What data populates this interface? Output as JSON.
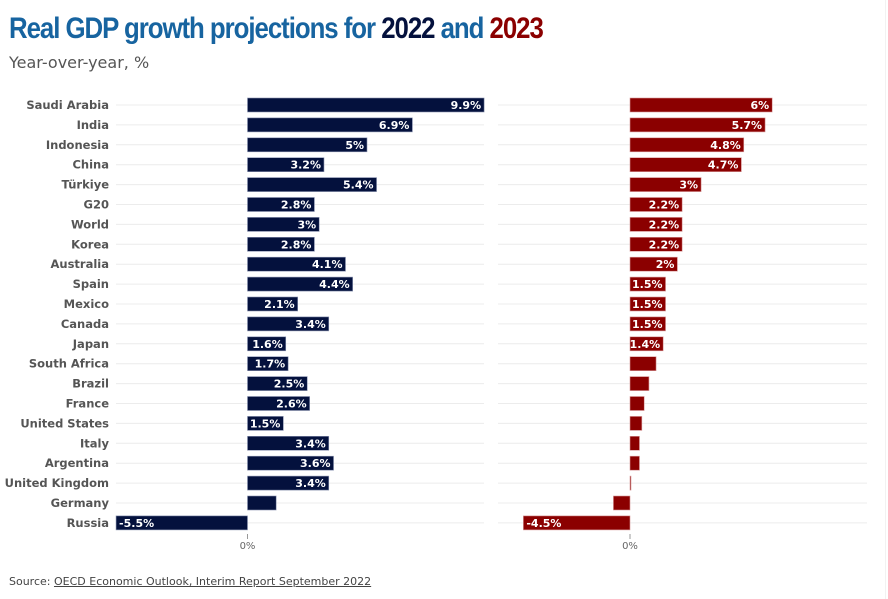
{
  "chart_data": {
    "type": "bar",
    "orientation": "horizontal",
    "title": "Real GDP growth projections for 2022 and 2023",
    "title_parts": {
      "prefix": "Real GDP growth projections for ",
      "year1": "2022",
      "middle": " and ",
      "year2": "2023"
    },
    "subtitle": "Year-over-year, %",
    "categories": [
      "Saudi Arabia",
      "India",
      "Indonesia",
      "China",
      "Türkiye",
      "G20",
      "World",
      "Korea",
      "Australia",
      "Spain",
      "Mexico",
      "Canada",
      "Japan",
      "South Africa",
      "Brazil",
      "France",
      "United States",
      "Italy",
      "Argentina",
      "United Kingdom",
      "Germany",
      "Russia"
    ],
    "series": [
      {
        "name": "2022",
        "color": "#04113d",
        "values": [
          9.9,
          6.9,
          5,
          3.2,
          5.4,
          2.8,
          3,
          2.8,
          4.1,
          4.4,
          2.1,
          3.4,
          1.6,
          1.7,
          2.5,
          2.6,
          1.5,
          3.4,
          3.6,
          3.4,
          1.2,
          -5.5
        ],
        "labels": [
          "9.9%",
          "6.9%",
          "5%",
          "3.2%",
          "5.4%",
          "2.8%",
          "3%",
          "2.8%",
          "4.1%",
          "4.4%",
          "2.1%",
          "3.4%",
          "1.6%",
          "1.7%",
          "2.5%",
          "2.6%",
          "1.5%",
          "3.4%",
          "3.6%",
          "3.4%",
          "",
          "-5.5%"
        ],
        "xlim": [
          -5.5,
          9.9
        ],
        "zero_tick": "0%"
      },
      {
        "name": "2023",
        "color": "#8b0000",
        "values": [
          6,
          5.7,
          4.8,
          4.7,
          3,
          2.2,
          2.2,
          2.2,
          2,
          1.5,
          1.5,
          1.5,
          1.4,
          1.1,
          0.8,
          0.6,
          0.5,
          0.4,
          0.4,
          0.0,
          -0.7,
          -4.5
        ],
        "labels": [
          "6%",
          "5.7%",
          "4.8%",
          "4.7%",
          "3%",
          "2.2%",
          "2.2%",
          "2.2%",
          "2%",
          "1.5%",
          "1.5%",
          "1.5%",
          "1.4%",
          "",
          "",
          "",
          "",
          "",
          "",
          "",
          "",
          "-4.5%"
        ],
        "xlim": [
          -5.5,
          10
        ],
        "zero_tick": "0%"
      }
    ],
    "grid": true,
    "legend": "none (years colored in title)"
  },
  "source": {
    "prefix": "Source: ",
    "link_text": "OECD Economic Outlook, Interim Report September 2022"
  }
}
